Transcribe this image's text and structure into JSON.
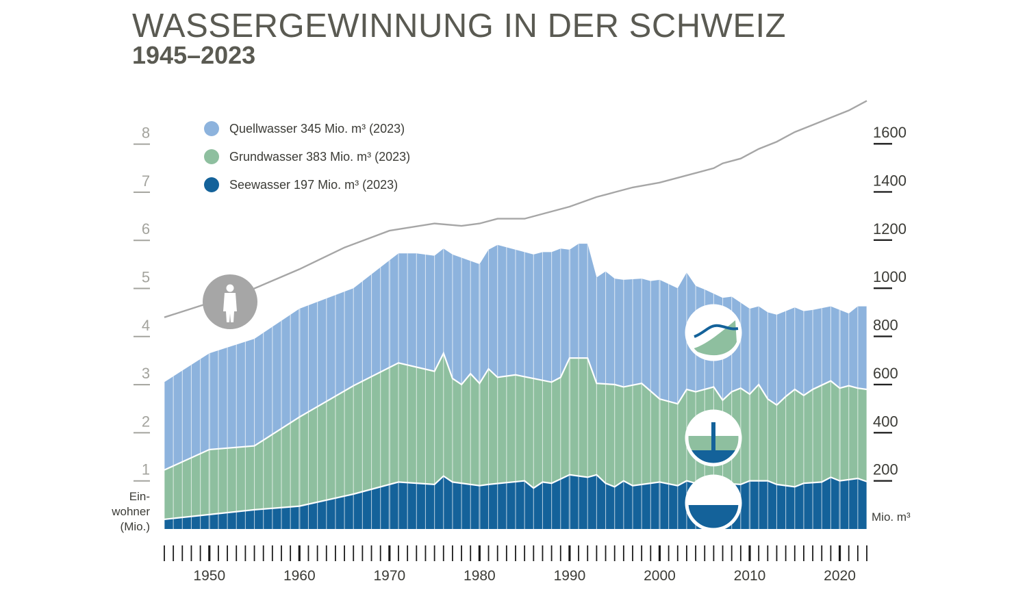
{
  "title": "WASSERGEWINNUNG IN DER SCHWEIZ",
  "subtitle": "1945–2023",
  "chart_data": {
    "type": "area",
    "stacked": true,
    "x_range": [
      1945,
      2023
    ],
    "y_right_label": "Mio. m³",
    "y_right_ticks": [
      200,
      400,
      600,
      800,
      1000,
      1200,
      1400,
      1600
    ],
    "y_left_label_lines": [
      "Ein-",
      "wohner",
      "(Mio.)"
    ],
    "y_left_ticks": [
      1,
      2,
      3,
      4,
      5,
      6,
      7,
      8
    ],
    "x_tick_labels": [
      1950,
      1960,
      1970,
      1980,
      1990,
      2000,
      2010,
      2020
    ],
    "legend_position": "top-left",
    "colors": {
      "quellwasser": "#8db3dd",
      "grundwasser": "#8ebf9f",
      "seewasser": "#14629a",
      "population": "#a6a6a6",
      "grid_line": "#ffffff"
    },
    "series": [
      {
        "name": "Seewasser",
        "legend": "Seewasser 197 Mio. m³ (2023)",
        "points": [
          [
            1945,
            40
          ],
          [
            1950,
            60
          ],
          [
            1955,
            80
          ],
          [
            1960,
            95
          ],
          [
            1966,
            145
          ],
          [
            1971,
            195
          ],
          [
            1975,
            185
          ],
          [
            1976,
            220
          ],
          [
            1977,
            195
          ],
          [
            1980,
            180
          ],
          [
            1981,
            185
          ],
          [
            1985,
            200
          ],
          [
            1986,
            170
          ],
          [
            1987,
            195
          ],
          [
            1988,
            190
          ],
          [
            1990,
            225
          ],
          [
            1992,
            215
          ],
          [
            1993,
            225
          ],
          [
            1994,
            190
          ],
          [
            1995,
            175
          ],
          [
            1996,
            200
          ],
          [
            1997,
            180
          ],
          [
            2000,
            195
          ],
          [
            2002,
            180
          ],
          [
            2003,
            200
          ],
          [
            2005,
            180
          ],
          [
            2006,
            180
          ],
          [
            2007,
            190
          ],
          [
            2009,
            185
          ],
          [
            2010,
            200
          ],
          [
            2012,
            200
          ],
          [
            2013,
            185
          ],
          [
            2015,
            175
          ],
          [
            2016,
            190
          ],
          [
            2018,
            195
          ],
          [
            2019,
            215
          ],
          [
            2020,
            200
          ],
          [
            2021,
            205
          ],
          [
            2022,
            210
          ],
          [
            2023,
            197
          ]
        ]
      },
      {
        "name": "Grundwasser",
        "legend": "Grundwasser 383 Mio. m³ (2023)",
        "points": [
          [
            1945,
            245
          ],
          [
            1950,
            330
          ],
          [
            1955,
            345
          ],
          [
            1960,
            465
          ],
          [
            1966,
            595
          ],
          [
            1971,
            690
          ],
          [
            1975,
            655
          ],
          [
            1976,
            730
          ],
          [
            1977,
            625
          ],
          [
            1978,
            600
          ],
          [
            1979,
            645
          ],
          [
            1980,
            605
          ],
          [
            1981,
            665
          ],
          [
            1982,
            630
          ],
          [
            1984,
            640
          ],
          [
            1988,
            610
          ],
          [
            1989,
            630
          ],
          [
            1990,
            710
          ],
          [
            1992,
            710
          ],
          [
            1993,
            605
          ],
          [
            1995,
            600
          ],
          [
            1996,
            590
          ],
          [
            1998,
            605
          ],
          [
            2000,
            540
          ],
          [
            2002,
            520
          ],
          [
            2003,
            580
          ],
          [
            2004,
            570
          ],
          [
            2006,
            590
          ],
          [
            2007,
            535
          ],
          [
            2008,
            570
          ],
          [
            2009,
            585
          ],
          [
            2010,
            560
          ],
          [
            2011,
            600
          ],
          [
            2012,
            540
          ],
          [
            2013,
            515
          ],
          [
            2014,
            550
          ],
          [
            2015,
            580
          ],
          [
            2016,
            555
          ],
          [
            2017,
            580
          ],
          [
            2019,
            615
          ],
          [
            2020,
            585
          ],
          [
            2021,
            595
          ],
          [
            2022,
            585
          ],
          [
            2023,
            580
          ]
        ]
      },
      {
        "name": "Quellwasser",
        "legend": "Quellwasser 345 Mio. m³ (2023)",
        "points": [
          [
            1945,
            610
          ],
          [
            1950,
            730
          ],
          [
            1955,
            790
          ],
          [
            1960,
            915
          ],
          [
            1966,
            1000
          ],
          [
            1971,
            1145
          ],
          [
            1973,
            1145
          ],
          [
            1975,
            1135
          ],
          [
            1976,
            1165
          ],
          [
            1977,
            1140
          ],
          [
            1980,
            1100
          ],
          [
            1981,
            1160
          ],
          [
            1982,
            1180
          ],
          [
            1984,
            1160
          ],
          [
            1985,
            1150
          ],
          [
            1986,
            1140
          ],
          [
            1987,
            1150
          ],
          [
            1988,
            1150
          ],
          [
            1989,
            1165
          ],
          [
            1990,
            1160
          ],
          [
            1991,
            1185
          ],
          [
            1992,
            1185
          ],
          [
            1993,
            1045
          ],
          [
            1994,
            1070
          ],
          [
            1995,
            1040
          ],
          [
            1996,
            1035
          ],
          [
            1998,
            1040
          ],
          [
            1999,
            1030
          ],
          [
            2000,
            1035
          ],
          [
            2002,
            1000
          ],
          [
            2003,
            1065
          ],
          [
            2004,
            1010
          ],
          [
            2005,
            995
          ],
          [
            2007,
            960
          ],
          [
            2008,
            965
          ],
          [
            2010,
            915
          ],
          [
            2011,
            925
          ],
          [
            2012,
            900
          ],
          [
            2013,
            890
          ],
          [
            2014,
            905
          ],
          [
            2015,
            920
          ],
          [
            2016,
            905
          ],
          [
            2017,
            910
          ],
          [
            2019,
            925
          ],
          [
            2020,
            910
          ],
          [
            2021,
            895
          ],
          [
            2022,
            925
          ],
          [
            2023,
            925
          ]
        ]
      },
      {
        "name": "Einwohner",
        "points": [
          [
            1945,
            4.4
          ],
          [
            1950,
            4.7
          ],
          [
            1955,
            5.0
          ],
          [
            1960,
            5.4
          ],
          [
            1965,
            5.85
          ],
          [
            1970,
            6.2
          ],
          [
            1975,
            6.35
          ],
          [
            1978,
            6.3
          ],
          [
            1980,
            6.35
          ],
          [
            1982,
            6.45
          ],
          [
            1985,
            6.45
          ],
          [
            1990,
            6.7
          ],
          [
            1993,
            6.9
          ],
          [
            1995,
            7.0
          ],
          [
            1997,
            7.1
          ],
          [
            2000,
            7.2
          ],
          [
            2002,
            7.3
          ],
          [
            2004,
            7.4
          ],
          [
            2006,
            7.5
          ],
          [
            2007,
            7.6
          ],
          [
            2009,
            7.7
          ],
          [
            2011,
            7.9
          ],
          [
            2013,
            8.05
          ],
          [
            2015,
            8.25
          ],
          [
            2017,
            8.4
          ],
          [
            2019,
            8.55
          ],
          [
            2021,
            8.7
          ],
          [
            2023,
            8.9
          ]
        ]
      }
    ]
  }
}
